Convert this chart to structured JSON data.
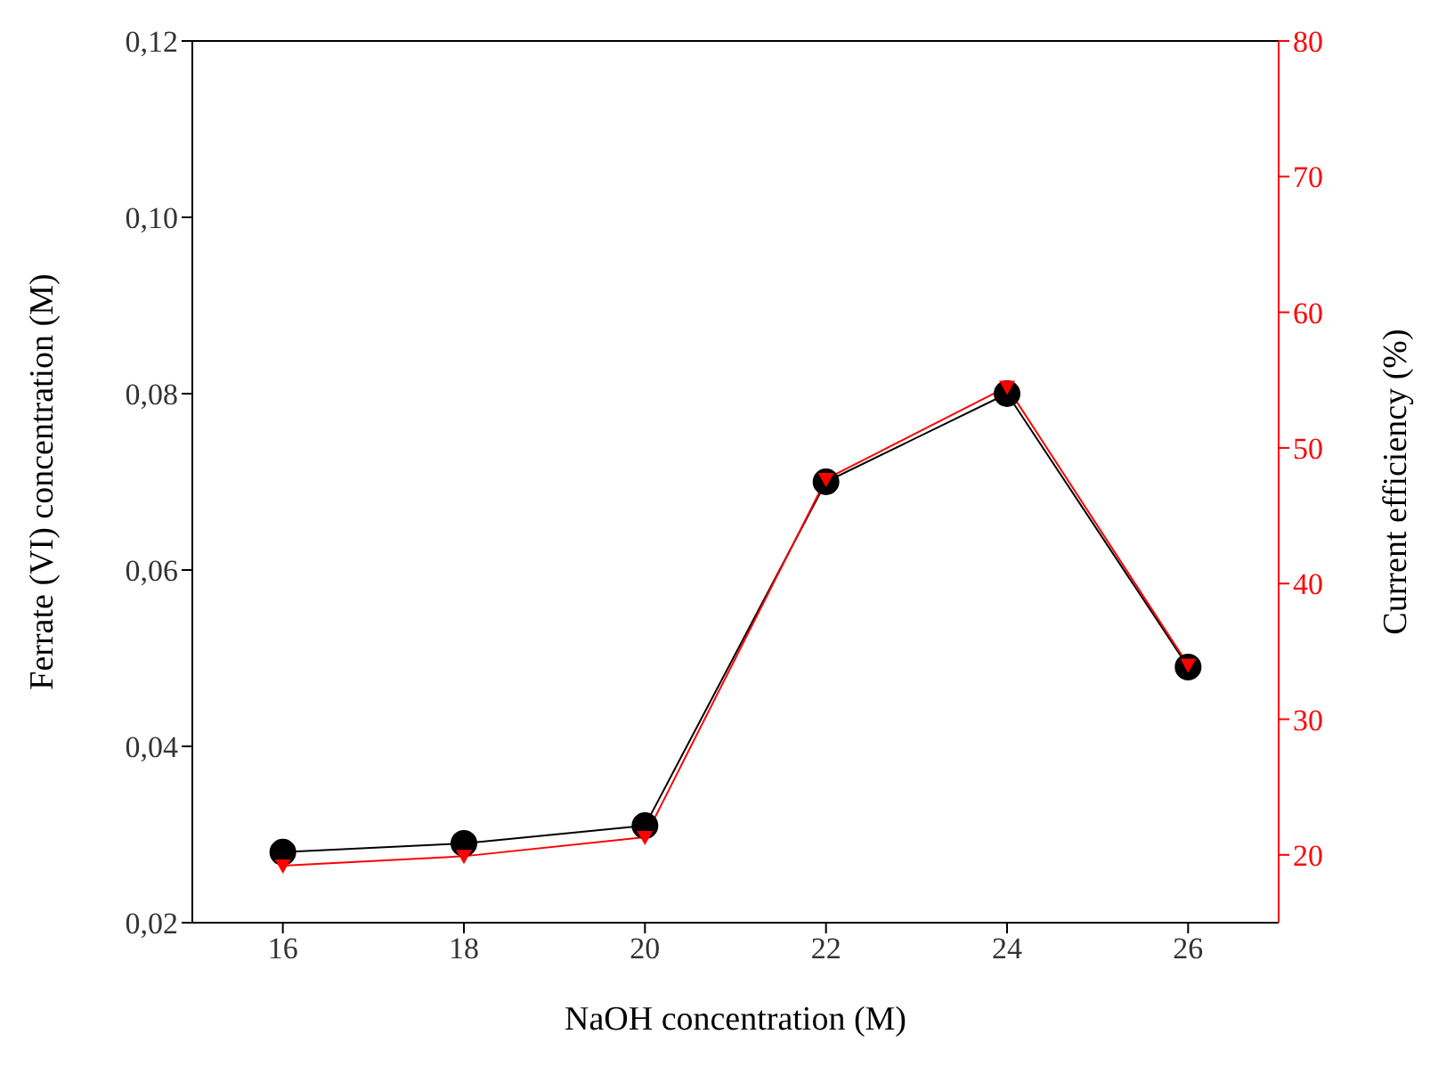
{
  "chart_data": {
    "type": "line",
    "xlabel": "NaOH concentration (M)",
    "ylabel": "Ferrate (VI) concentration (M)",
    "y2label": "Current efficiency (%)",
    "x": [
      16,
      18,
      20,
      22,
      24,
      26
    ],
    "series": [
      {
        "color": "#000000",
        "marker": "circle",
        "values": [
          0.028,
          0.029,
          0.031,
          0.07,
          0.08,
          0.049
        ]
      },
      {
        "color": "#ff0000",
        "marker": "triangle",
        "axis": "y2",
        "values": [
          19.2,
          19.9,
          21.3,
          47.7,
          54.5,
          34
        ]
      }
    ],
    "xlim": [
      15,
      27
    ],
    "xticks": [
      16,
      18,
      20,
      22,
      24,
      26
    ],
    "ylim": [
      0.02,
      0.12
    ],
    "yticks": [
      {
        "value": 0.02,
        "label": "0,02"
      },
      {
        "value": 0.04,
        "label": "0,04"
      },
      {
        "value": 0.06,
        "label": "0,06"
      },
      {
        "value": 0.08,
        "label": "0,08"
      },
      {
        "value": 0.1,
        "label": "0,10"
      },
      {
        "value": 0.12,
        "label": "0,12"
      }
    ],
    "y2lim": [
      15,
      80
    ],
    "y2ticks": [
      20,
      30,
      40,
      50,
      60,
      70,
      80
    ],
    "grid": false,
    "legend": false
  }
}
